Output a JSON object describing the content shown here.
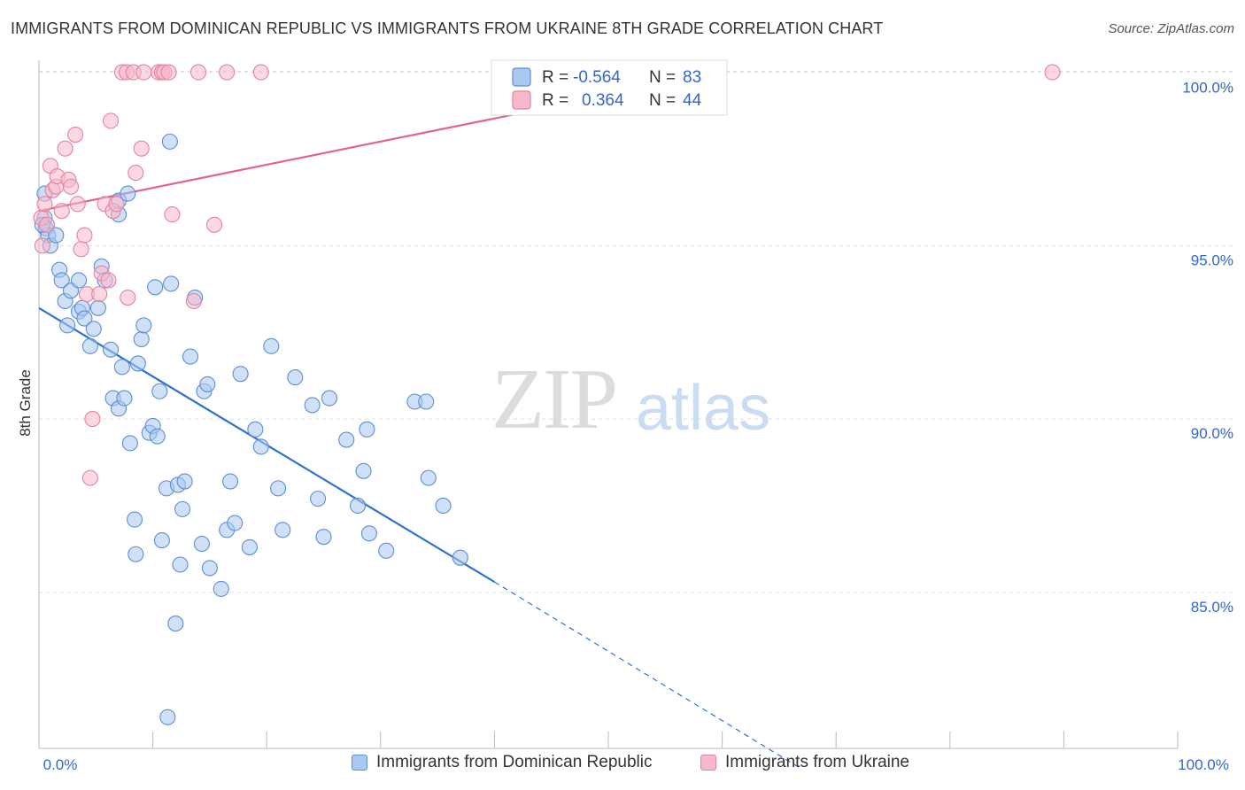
{
  "title": "IMMIGRANTS FROM DOMINICAN REPUBLIC VS IMMIGRANTS FROM UKRAINE 8TH GRADE CORRELATION CHART",
  "source": "Source: ZipAtlas.com",
  "watermark": {
    "zip": "ZIP",
    "atlas": "atlas"
  },
  "colors": {
    "blue_fill": "#a9c8f0",
    "blue_stroke": "#5b8fd6",
    "blue_line": "#2f73d0",
    "pink_fill": "#f7b8cb",
    "pink_stroke": "#e6829f",
    "pink_line": "#e06490",
    "grid": "#dddddd",
    "axis_label": "#3366cc"
  },
  "legend": {
    "series1": {
      "r_label": "R = ",
      "r_value": "-0.564",
      "n_label": "N = ",
      "n_value": "83"
    },
    "series2": {
      "r_label": "R = ",
      "r_value": "0.364",
      "n_label": "N = ",
      "n_value": "44"
    }
  },
  "chart_data": {
    "type": "scatter",
    "title": "IMMIGRANTS FROM DOMINICAN REPUBLIC VS IMMIGRANTS FROM UKRAINE 8TH GRADE CORRELATION CHART",
    "xlabel": "",
    "ylabel": "8th Grade",
    "xlim": [
      0,
      100
    ],
    "ylim": [
      80.5,
      100.5
    ],
    "x_tick_labels": [
      "0.0%",
      "100.0%"
    ],
    "y_ticks": [
      85,
      90,
      95,
      100
    ],
    "y_tick_labels": [
      "85.0%",
      "90.0%",
      "95.0%",
      "100.0%"
    ],
    "grid": true,
    "series": [
      {
        "name": "Immigrants from Dominican Republic",
        "color": "blue",
        "trend": {
          "x0": 0,
          "y0": 93.2,
          "x1": 40,
          "y1": 85.3,
          "dash_to_x": 67,
          "dash_to_y": 79.9
        },
        "points": [
          [
            0.5,
            96.5
          ],
          [
            0.5,
            95.8
          ],
          [
            0.6,
            95.5
          ],
          [
            0.8,
            95.3
          ],
          [
            1.0,
            95.0
          ],
          [
            1.5,
            95.3
          ],
          [
            1.8,
            94.3
          ],
          [
            2.0,
            94.0
          ],
          [
            2.3,
            93.4
          ],
          [
            2.5,
            92.7
          ],
          [
            2.8,
            93.7
          ],
          [
            3.5,
            93.1
          ],
          [
            3.5,
            94.0
          ],
          [
            3.8,
            93.2
          ],
          [
            4.0,
            92.9
          ],
          [
            4.5,
            92.1
          ],
          [
            4.8,
            92.6
          ],
          [
            5.2,
            93.2
          ],
          [
            5.5,
            94.4
          ],
          [
            5.8,
            94.0
          ],
          [
            6.3,
            92.0
          ],
          [
            6.5,
            90.6
          ],
          [
            7.0,
            90.3
          ],
          [
            7.0,
            95.9
          ],
          [
            7.0,
            96.3
          ],
          [
            7.3,
            91.5
          ],
          [
            7.5,
            90.6
          ],
          [
            7.8,
            96.5
          ],
          [
            8.0,
            89.3
          ],
          [
            8.4,
            87.1
          ],
          [
            8.5,
            86.1
          ],
          [
            8.7,
            91.6
          ],
          [
            9.0,
            92.3
          ],
          [
            9.2,
            92.7
          ],
          [
            9.7,
            89.6
          ],
          [
            10.0,
            89.8
          ],
          [
            10.2,
            93.8
          ],
          [
            10.4,
            89.5
          ],
          [
            10.6,
            90.8
          ],
          [
            10.8,
            86.5
          ],
          [
            11.2,
            88.0
          ],
          [
            11.3,
            81.4
          ],
          [
            11.5,
            98.0
          ],
          [
            11.6,
            93.9
          ],
          [
            12.0,
            84.1
          ],
          [
            12.2,
            88.1
          ],
          [
            12.4,
            85.8
          ],
          [
            12.6,
            87.4
          ],
          [
            12.8,
            88.2
          ],
          [
            13.3,
            91.8
          ],
          [
            13.7,
            93.5
          ],
          [
            14.3,
            86.4
          ],
          [
            14.5,
            90.8
          ],
          [
            14.8,
            91.0
          ],
          [
            15.0,
            85.7
          ],
          [
            16.0,
            85.1
          ],
          [
            16.5,
            86.8
          ],
          [
            16.8,
            88.2
          ],
          [
            17.2,
            87.0
          ],
          [
            17.7,
            91.3
          ],
          [
            18.5,
            86.3
          ],
          [
            19.0,
            89.7
          ],
          [
            19.5,
            89.2
          ],
          [
            20.4,
            92.1
          ],
          [
            21.0,
            88.0
          ],
          [
            21.4,
            86.8
          ],
          [
            22.5,
            91.2
          ],
          [
            24.0,
            90.4
          ],
          [
            24.5,
            87.7
          ],
          [
            25.0,
            86.6
          ],
          [
            25.5,
            90.6
          ],
          [
            27.0,
            89.4
          ],
          [
            28.0,
            87.5
          ],
          [
            28.5,
            88.5
          ],
          [
            28.8,
            89.7
          ],
          [
            29.0,
            86.7
          ],
          [
            30.5,
            86.2
          ],
          [
            33.0,
            90.5
          ],
          [
            34.0,
            90.5
          ],
          [
            34.2,
            88.3
          ],
          [
            35.5,
            87.5
          ],
          [
            37.0,
            86.0
          ],
          [
            0.3,
            95.6
          ]
        ]
      },
      {
        "name": "Immigrants from Ukraine",
        "color": "pink",
        "trend": {
          "x0": 0,
          "y0": 96.0,
          "x1": 60,
          "y1": 100.0
        },
        "points": [
          [
            0.2,
            95.8
          ],
          [
            0.3,
            95.0
          ],
          [
            0.5,
            96.2
          ],
          [
            0.7,
            95.6
          ],
          [
            1.0,
            97.3
          ],
          [
            1.2,
            96.6
          ],
          [
            1.5,
            96.7
          ],
          [
            1.6,
            97.0
          ],
          [
            2.0,
            96.0
          ],
          [
            2.3,
            97.8
          ],
          [
            2.6,
            96.9
          ],
          [
            2.8,
            96.7
          ],
          [
            3.2,
            98.2
          ],
          [
            3.4,
            96.2
          ],
          [
            3.7,
            94.9
          ],
          [
            4.0,
            95.3
          ],
          [
            4.2,
            93.6
          ],
          [
            4.5,
            88.3
          ],
          [
            4.7,
            90.0
          ],
          [
            5.3,
            93.6
          ],
          [
            5.5,
            94.2
          ],
          [
            5.8,
            96.2
          ],
          [
            6.1,
            94.0
          ],
          [
            6.3,
            98.6
          ],
          [
            6.5,
            96.0
          ],
          [
            6.8,
            96.2
          ],
          [
            7.3,
            100.0
          ],
          [
            7.7,
            100.0
          ],
          [
            7.8,
            93.5
          ],
          [
            8.3,
            100.0
          ],
          [
            8.5,
            97.1
          ],
          [
            9.0,
            97.8
          ],
          [
            9.2,
            100.0
          ],
          [
            10.5,
            100.0
          ],
          [
            10.8,
            100.0
          ],
          [
            11.0,
            100.0
          ],
          [
            11.4,
            100.0
          ],
          [
            11.7,
            95.9
          ],
          [
            13.6,
            93.4
          ],
          [
            14.0,
            100.0
          ],
          [
            15.4,
            95.6
          ],
          [
            16.5,
            100.0
          ],
          [
            19.5,
            100.0
          ],
          [
            89.0,
            100.0
          ]
        ]
      }
    ]
  },
  "bottom_legend": {
    "series1": "Immigrants from Dominican Republic",
    "series2": "Immigrants from Ukraine"
  }
}
